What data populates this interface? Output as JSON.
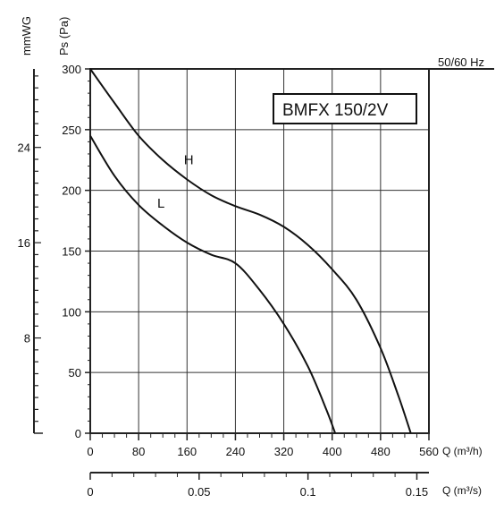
{
  "chart_data": {
    "type": "line",
    "model_label": "BMFX 150/2V",
    "frequency_label": "50/60 Hz",
    "left_axis_label": "mmWG",
    "ylabel": "Ps (Pa)",
    "xlabel": "Q (m³/h)",
    "x2label": "Q (m³/s)",
    "xlim": [
      0,
      560
    ],
    "ylim": [
      0,
      300
    ],
    "x_ticks": [
      0,
      80,
      160,
      240,
      320,
      400,
      480,
      560
    ],
    "x_tick_labels": [
      "0",
      "80",
      "160",
      "240",
      "320",
      "400",
      "480",
      "560"
    ],
    "y_ticks": [
      0,
      50,
      100,
      150,
      200,
      250,
      300
    ],
    "y_tick_labels": [
      "0",
      "50",
      "100",
      "150",
      "200",
      "250",
      "300"
    ],
    "mmwg_ticks": [
      8,
      16,
      24
    ],
    "mmwg_tick_labels": [
      "8",
      "16",
      "24"
    ],
    "x2_ticks": [
      0,
      0.05,
      0.1,
      0.15
    ],
    "x2_tick_labels": [
      "0",
      "0.05",
      "0.1",
      "0.15"
    ],
    "grid": true,
    "series": [
      {
        "name": "H",
        "x": [
          0,
          40,
          80,
          120,
          160,
          200,
          240,
          280,
          320,
          360,
          400,
          440,
          480,
          510,
          530
        ],
        "y": [
          300,
          272,
          245,
          225,
          209,
          196,
          187,
          180,
          170,
          155,
          135,
          110,
          70,
          30,
          0
        ]
      },
      {
        "name": "L",
        "x": [
          0,
          40,
          80,
          120,
          160,
          200,
          240,
          280,
          320,
          360,
          390,
          405
        ],
        "y": [
          245,
          212,
          188,
          171,
          157,
          147,
          140,
          118,
          90,
          55,
          20,
          0
        ]
      }
    ]
  }
}
